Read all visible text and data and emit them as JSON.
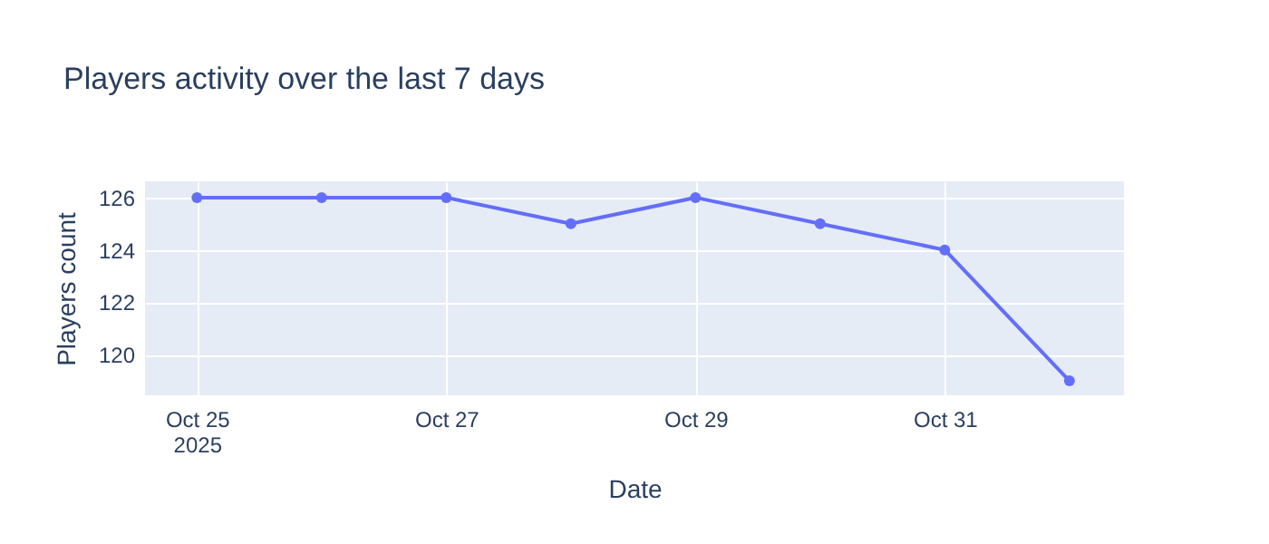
{
  "chart_data": {
    "type": "line",
    "title": "Players activity over the last 7 days",
    "xlabel": "Date",
    "ylabel": "Players count",
    "x": [
      "2025-10-25",
      "2025-10-26",
      "2025-10-27",
      "2025-10-28",
      "2025-10-29",
      "2025-10-30",
      "2025-10-31",
      "2025-11-01"
    ],
    "series": [
      {
        "color": "#636efa",
        "values": [
          126,
          126,
          126,
          125,
          126,
          125,
          124,
          119
        ]
      }
    ],
    "xlim": [
      "2025-10-24T14:00",
      "2025-11-01T10:30"
    ],
    "xticks": [
      {
        "value": "2025-10-25",
        "label": "Oct 25\n2025"
      },
      {
        "value": "2025-10-27",
        "label": "Oct 27"
      },
      {
        "value": "2025-10-29",
        "label": "Oct 29"
      },
      {
        "value": "2025-10-31",
        "label": "Oct 31"
      }
    ],
    "ylim": [
      118.45,
      126.62
    ],
    "yticks": [
      120,
      122,
      124,
      126
    ],
    "grid": true,
    "marker": "circle",
    "line_style": "solid"
  }
}
